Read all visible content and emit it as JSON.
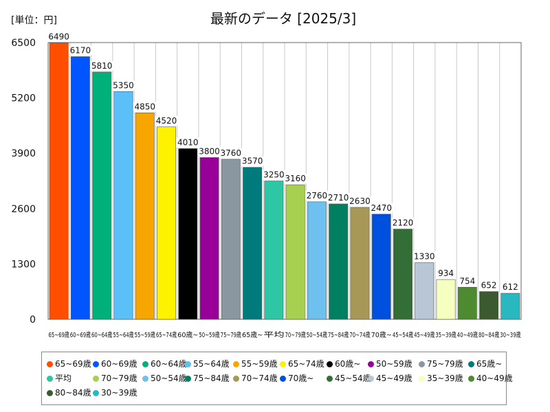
{
  "chart_data": {
    "type": "bar",
    "title": "最新のデータ [2025/3]",
    "unit_label": "[単位：円]",
    "ylim": [
      0,
      6500
    ],
    "yticks": [
      0,
      1300,
      2600,
      3900,
      5200,
      6500
    ],
    "grid": "vertical-between-bars",
    "legend_position": "bottom",
    "categories": [
      "65~69歳",
      "60~69歳",
      "60~64歳",
      "55~64歳",
      "55~59歳",
      "65~74歳",
      "60歳~",
      "50~59歳",
      "75~79歳",
      "65歳~",
      "平均",
      "70~79歳",
      "50~54歳",
      "75~84歳",
      "70~74歳",
      "70歳~",
      "45~54歳",
      "45~49歳",
      "35~39歳",
      "40~49歳",
      "80~84歳",
      "30~39歳"
    ],
    "tick_labels": [
      "65~69歳",
      "60~69歳",
      "60~64歳",
      "55~64歳",
      "55~59歳",
      "65~74歳",
      "60歳~",
      "50~59歳",
      "75~79歳",
      "65歳~",
      "平均",
      "70~79歳",
      "50~54歳",
      "75~84歳",
      "70~74歳",
      "70歳~",
      "45~54歳",
      "45~49歳",
      "35~39歳",
      "40~49歳",
      "80~84歳",
      "30~39歳"
    ],
    "values": [
      6490,
      6170,
      5810,
      5350,
      4850,
      4520,
      4010,
      3800,
      3760,
      3570,
      3250,
      3160,
      2760,
      2710,
      2630,
      2470,
      2120,
      1330,
      934,
      754,
      652,
      612
    ],
    "value_labels": [
      "6490",
      "6170",
      "5810",
      "5350",
      "4850",
      "4520",
      "4010",
      "3800",
      "3760",
      "3570",
      "3250",
      "3160",
      "2760",
      "2710",
      "2630",
      "2470",
      "2120",
      "1330",
      "934",
      "754",
      "652",
      "612"
    ],
    "colors": [
      "#ff4e00",
      "#0055ff",
      "#00b07a",
      "#5bc0f8",
      "#f7a600",
      "#fff200",
      "#000000",
      "#990099",
      "#8a96a0",
      "#007a7a",
      "#2ec7a5",
      "#a8d050",
      "#6ec0ee",
      "#008060",
      "#a89858",
      "#0050e0",
      "#336e36",
      "#b8c6d6",
      "#f4ffc0",
      "#4e8a30",
      "#3c5a30",
      "#2ab8c0"
    ]
  }
}
